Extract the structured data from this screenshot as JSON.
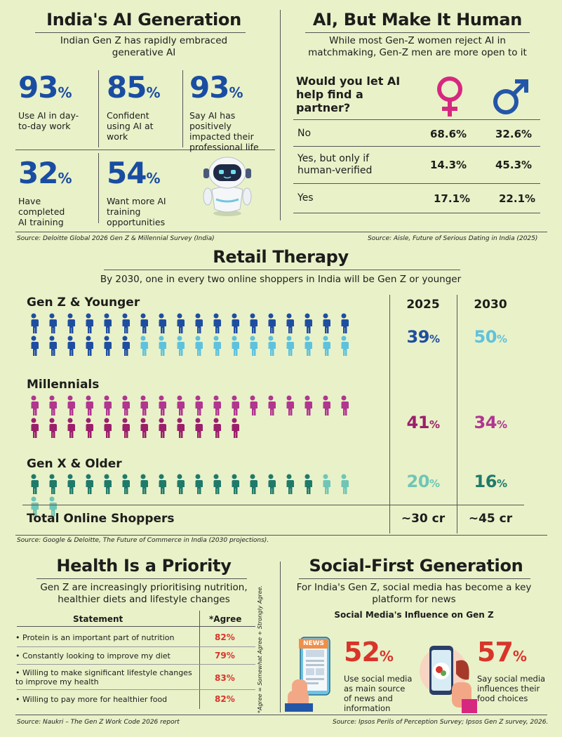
{
  "ai_generation": {
    "title": "India's AI Generation",
    "subtitle": "Indian Gen Z has rapidly embraced generative AI",
    "stats": [
      {
        "value": "93",
        "unit": "%",
        "label": "Use AI in day-to-day work"
      },
      {
        "value": "85",
        "unit": "%",
        "label": "Confident using AI at work"
      },
      {
        "value": "93",
        "unit": "%",
        "label": "Say AI has positively impacted their professional life"
      },
      {
        "value": "32",
        "unit": "%",
        "label": "Have completed AI training"
      },
      {
        "value": "54",
        "unit": "%",
        "label": "Want more AI training opportunities"
      }
    ],
    "source": "Source: Deloitte Global 2026 Gen Z & Millennial Survey (India)"
  },
  "ai_human": {
    "title": "AI, But Make It Human",
    "subtitle": "While most Gen-Z women reject AI in matchmaking, Gen-Z men are more open to it",
    "question": "Would you let AI help find a partner?",
    "rows": [
      {
        "label": "No",
        "female": "68.6%",
        "male": "32.6%"
      },
      {
        "label": "Yes, but only if human-verified",
        "female": "14.3%",
        "male": "45.3%"
      },
      {
        "label": "Yes",
        "female": "17.1%",
        "male": "22.1%"
      }
    ],
    "female_color": "#d6287f",
    "male_color": "#2456a8",
    "source": "Source: Aisle, Future of Serious Dating in India (2025)"
  },
  "retail": {
    "title": "Retail Therapy",
    "subtitle": "By 2030, one in every two online shoppers in India will be Gen Z or younger",
    "col_2025": "2025",
    "col_2030": "2030",
    "groups": [
      {
        "name": "Gen Z & Younger",
        "v2025": "39",
        "v2030": "50",
        "unit": "%",
        "dark": "#1f4ea0",
        "light": "#5fc2dc",
        "count": 36,
        "dark_count": 24
      },
      {
        "name": "Millennials",
        "v2025": "41",
        "v2030": "34",
        "unit": "%",
        "dark": "#b0368f",
        "light": "#9b1f6a",
        "count": 30,
        "dark_count": 18
      },
      {
        "name": "Gen X & Older",
        "v2025": "20",
        "v2030": "16",
        "unit": "%",
        "dark": "#1f7a6a",
        "light": "#6fc6b6",
        "count": 20,
        "dark_count": 16
      }
    ],
    "total_label": "Total Online Shoppers",
    "total_2025": "~30 cr",
    "total_2030": "~45 cr",
    "source": "Source: Google & Deloitte, The Future of Commerce in India (2030 projections)."
  },
  "health": {
    "title": "Health Is a Priority",
    "subtitle": "Gen Z are increasingly prioritising nutrition, healthier diets and lifestyle changes",
    "col_statement": "Statement",
    "col_agree": "*Agree",
    "rows": [
      {
        "statement": "Protein is an important part of nutrition",
        "agree": "82%"
      },
      {
        "statement": "Constantly looking to improve my diet",
        "agree": "79%"
      },
      {
        "statement": "Willing to make significant lifestyle changes to improve my health",
        "agree": "83%"
      },
      {
        "statement": "Willing to pay more for healthier food",
        "agree": "82%"
      }
    ],
    "footnote": "*Agree = Somewhat Agree + Strongly Agree.",
    "source": "Source: Naukri – The Gen Z Work Code 2026 report"
  },
  "social": {
    "title": "Social-First Generation",
    "subtitle": "For India's Gen Z, social media has become a key platform for news",
    "chart_title": "Social Media's Influence on Gen Z",
    "news_badge": "NEWS",
    "stats": [
      {
        "value": "52",
        "unit": "%",
        "label": "Use social media as main source of news and information"
      },
      {
        "value": "57",
        "unit": "%",
        "label": "Say social media influences their food choices"
      }
    ],
    "source": "Source: Ipsos Perils of Perception Survey; Ipsos Gen Z survey, 2026."
  }
}
